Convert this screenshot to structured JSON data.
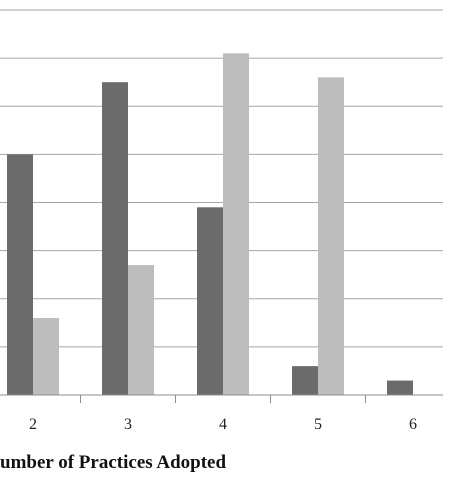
{
  "chart_data": {
    "type": "bar",
    "xlabel": "umber of Practices Adopted",
    "categories": [
      "2",
      "3",
      "4",
      "5",
      "6"
    ],
    "ylim": [
      0,
      8
    ],
    "grid": true,
    "series": [
      {
        "values": [
          5.0,
          6.5,
          3.9,
          0.6,
          0.3
        ],
        "color": "#6b6b6b"
      },
      {
        "values": [
          1.6,
          2.7,
          7.1,
          6.6,
          0.0
        ],
        "color": "#bdbdbd"
      }
    ]
  }
}
